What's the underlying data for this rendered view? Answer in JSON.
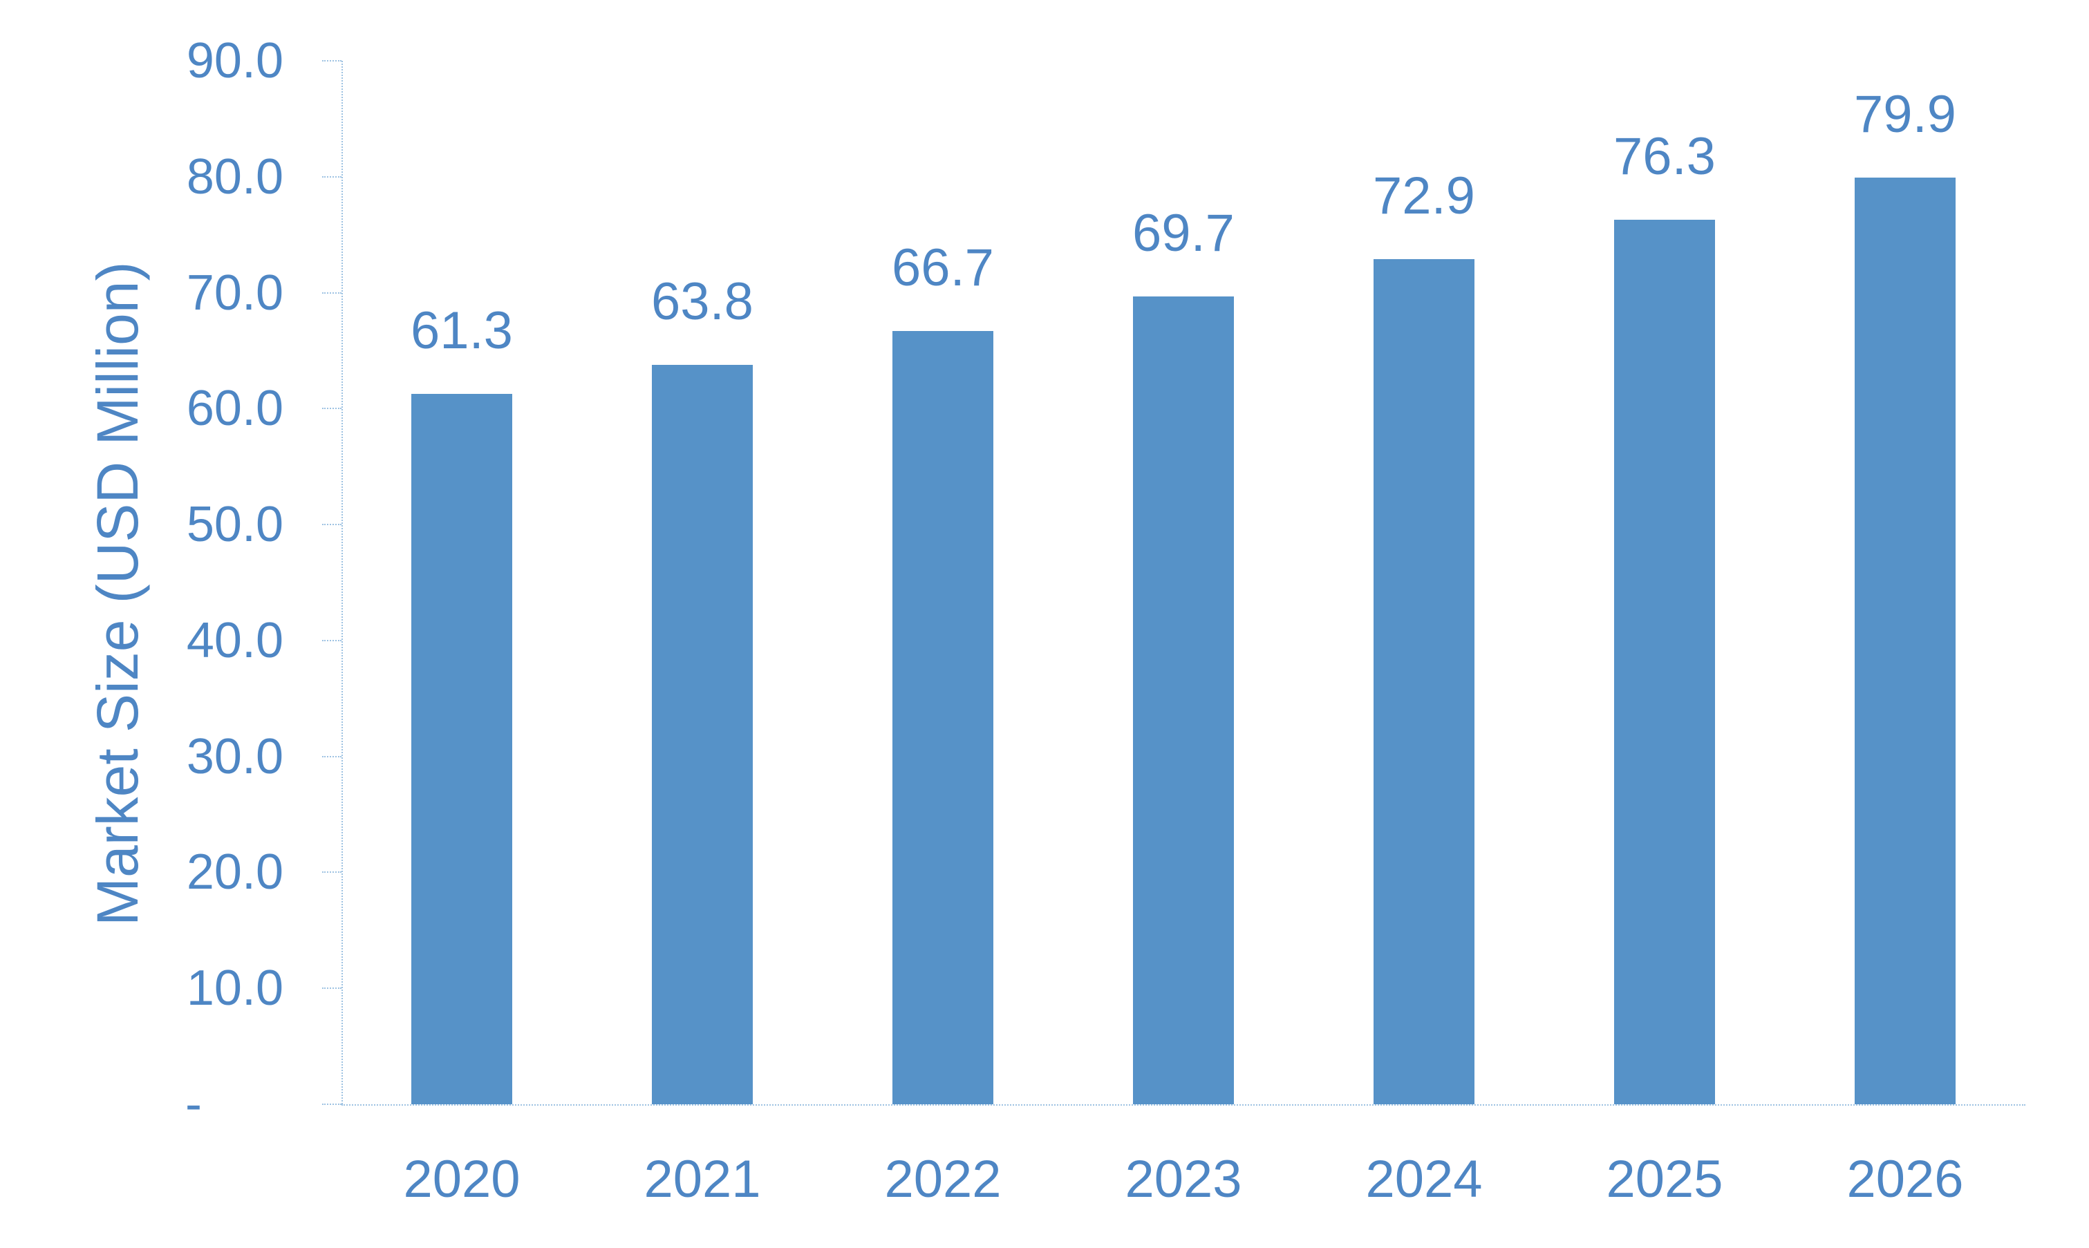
{
  "chart_data": {
    "type": "bar",
    "title": "",
    "categories": [
      "2020",
      "2021",
      "2022",
      "2023",
      "2024",
      "2025",
      "2026"
    ],
    "values": [
      61.3,
      63.8,
      66.7,
      69.7,
      72.9,
      76.3,
      79.9
    ],
    "data_labels": [
      "61.3",
      "63.8",
      "66.7",
      "69.7",
      "72.9",
      "76.3",
      "79.9"
    ],
    "xlabel": "",
    "ylabel": "Market Size (USD Million)",
    "ylim": [
      0,
      90
    ],
    "ytick_step": 10,
    "ytick_labels": [
      "-",
      "10.0",
      "20.0",
      "30.0",
      "40.0",
      "50.0",
      "60.0",
      "70.0",
      "80.0",
      "90.0"
    ],
    "grid": false,
    "legend": "none",
    "colors": {
      "bar": "#5692C8",
      "text": "#4E86C4",
      "axis": "#9DC2E2",
      "background": "#FFFFFF"
    }
  }
}
